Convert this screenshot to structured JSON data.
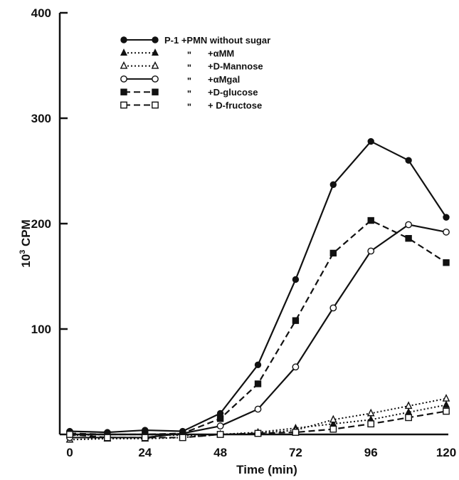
{
  "chart_data": {
    "type": "line",
    "xlabel": "Time (min)",
    "ylabel_base": "10",
    "ylabel_sup": "3",
    "ylabel_rest": " CPM",
    "xlim": [
      0,
      120
    ],
    "ylim": [
      0,
      400
    ],
    "x_ticks": [
      0,
      24,
      48,
      72,
      96,
      120
    ],
    "y_ticks": [
      100,
      200,
      300,
      400
    ],
    "grid": false,
    "legend_placement": "top-center",
    "legend_ditto": "\"",
    "series": [
      {
        "name": "P-1 +PMN without sugar",
        "legend_label": "P-1 +PMN without sugar",
        "marker": "filled-circle",
        "line": "solid",
        "x": [
          0,
          12,
          24,
          36,
          48,
          60,
          72,
          84,
          96,
          108,
          120
        ],
        "y": [
          3,
          2,
          4,
          3,
          20,
          66,
          147,
          237,
          278,
          260,
          206
        ]
      },
      {
        "name": "+αMM",
        "legend_label": "+αMM",
        "marker": "filled-triangle",
        "line": "dotted",
        "x": [
          0,
          12,
          24,
          36,
          48,
          60,
          72,
          84,
          96,
          108,
          120
        ],
        "y": [
          -1,
          0,
          0,
          -1,
          0,
          2,
          6,
          10,
          14,
          21,
          28
        ]
      },
      {
        "name": "+D-Mannose",
        "legend_label": "+D-Mannose",
        "marker": "open-triangle",
        "line": "dotted",
        "x": [
          0,
          12,
          24,
          36,
          48,
          60,
          72,
          84,
          96,
          108,
          120
        ],
        "y": [
          -5,
          -4,
          -4,
          -3,
          0,
          1,
          4,
          14,
          20,
          27,
          34
        ]
      },
      {
        "name": "+αMgal",
        "legend_label": "+αMgal",
        "marker": "open-circle",
        "line": "solid",
        "x": [
          0,
          12,
          24,
          36,
          48,
          60,
          72,
          84,
          96,
          108,
          120
        ],
        "y": [
          -3,
          -3,
          -3,
          1,
          8,
          24,
          64,
          120,
          174,
          199,
          192
        ]
      },
      {
        "name": "+D-glucose",
        "legend_label": "+D-glucose",
        "marker": "filled-square",
        "line": "dashed",
        "x": [
          0,
          12,
          24,
          36,
          48,
          60,
          72,
          84,
          96,
          108,
          120
        ],
        "y": [
          1,
          0,
          0,
          1,
          15,
          48,
          108,
          172,
          203,
          186,
          163
        ]
      },
      {
        "name": "+D-fructose",
        "legend_label": "+ D-fructose",
        "marker": "open-square",
        "line": "dashed",
        "x": [
          0,
          12,
          24,
          36,
          48,
          60,
          72,
          84,
          96,
          108,
          120
        ],
        "y": [
          0,
          -3,
          -3,
          -3,
          0,
          1,
          2,
          5,
          10,
          16,
          22
        ]
      }
    ]
  }
}
